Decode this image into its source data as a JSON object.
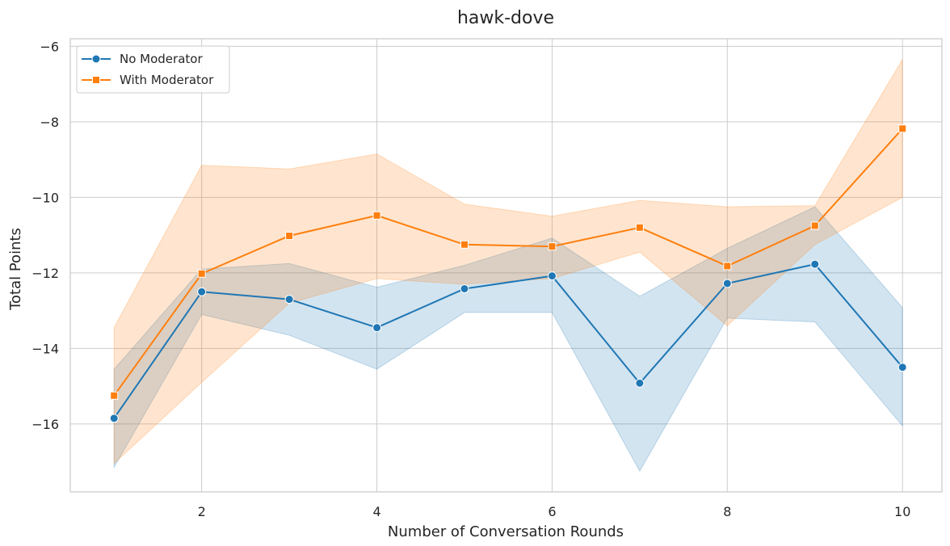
{
  "chart_data": {
    "type": "line",
    "title": "hawk-dove",
    "xlabel": "Number of Conversation Rounds",
    "ylabel": "Total Points",
    "xlim": [
      0.5,
      10.45
    ],
    "ylim": [
      -17.8,
      -5.8
    ],
    "x_ticks": [
      2,
      4,
      6,
      8,
      10
    ],
    "y_ticks": [
      -16,
      -14,
      -12,
      -10,
      -8,
      -6
    ],
    "grid": true,
    "legend_position": "top-left",
    "x": [
      1,
      2,
      3,
      4,
      5,
      6,
      7,
      8,
      9,
      10
    ],
    "series": [
      {
        "name": "No Moderator",
        "color": "#1f77b4",
        "marker": "circle",
        "values": [
          -15.85,
          -12.5,
          -12.7,
          -13.45,
          -12.42,
          -12.08,
          -14.92,
          -12.28,
          -11.77,
          -14.5
        ],
        "ci_lower": [
          -17.15,
          -13.1,
          -13.65,
          -14.55,
          -13.05,
          -13.05,
          -17.25,
          -13.2,
          -13.3,
          -16.05
        ],
        "ci_upper": [
          -14.55,
          -11.9,
          -11.75,
          -12.38,
          -11.8,
          -11.08,
          -12.62,
          -11.35,
          -10.25,
          -12.92
        ]
      },
      {
        "name": "With Moderator",
        "color": "#ff7f0e",
        "marker": "square",
        "values": [
          -15.25,
          -12.02,
          -11.02,
          -10.48,
          -11.25,
          -11.3,
          -10.8,
          -11.82,
          -10.75,
          -8.18
        ],
        "ci_lower": [
          -17.05,
          -14.9,
          -12.8,
          -12.15,
          -12.3,
          -12.15,
          -11.45,
          -13.4,
          -11.25,
          -10.0
        ],
        "ci_upper": [
          -13.45,
          -9.15,
          -9.25,
          -8.85,
          -10.18,
          -10.5,
          -10.08,
          -10.25,
          -10.22,
          -6.35
        ]
      }
    ]
  }
}
